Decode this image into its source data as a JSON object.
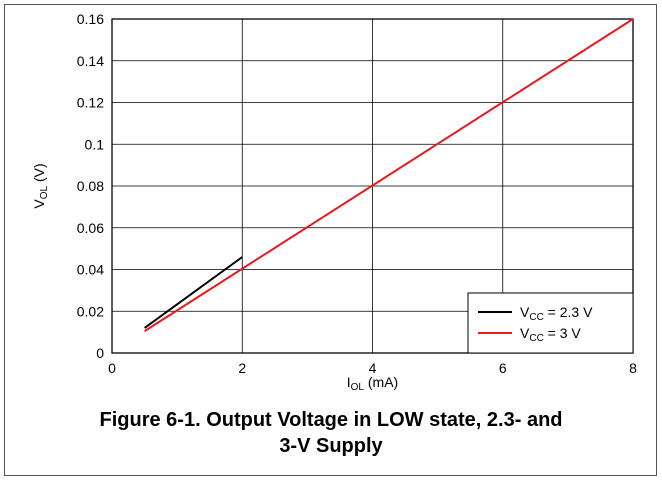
{
  "chart_data": {
    "type": "line",
    "xlim": [
      0,
      8
    ],
    "ylim": [
      0,
      0.16
    ],
    "x_ticks": [
      "0",
      "2",
      "4",
      "6",
      "8"
    ],
    "y_ticks": [
      "0",
      "0.02",
      "0.04",
      "0.06",
      "0.08",
      "0.1",
      "0.12",
      "0.14",
      "0.16"
    ],
    "xlabel": {
      "main": "I",
      "sub": "OL",
      "rest": " (mA)"
    },
    "ylabel": {
      "main": "V",
      "sub": "OL",
      "rest": " (V)"
    },
    "grid": true,
    "legend_position": "bottom-right",
    "series": [
      {
        "label": {
          "main": "V",
          "sub": "CC",
          "rest": " = 2.3 V"
        },
        "color": "#000000",
        "x": [
          0.5,
          2.0
        ],
        "y": [
          0.012,
          0.046
        ]
      },
      {
        "label": {
          "main": "V",
          "sub": "CC",
          "rest": " = 3 V"
        },
        "color": "#e8191f",
        "x": [
          0.5,
          8.0
        ],
        "y": [
          0.0105,
          0.16
        ]
      }
    ]
  },
  "caption": {
    "line1": "Figure 6-1. Output Voltage in LOW state, 2.3- and",
    "line2": "3-V Supply"
  }
}
